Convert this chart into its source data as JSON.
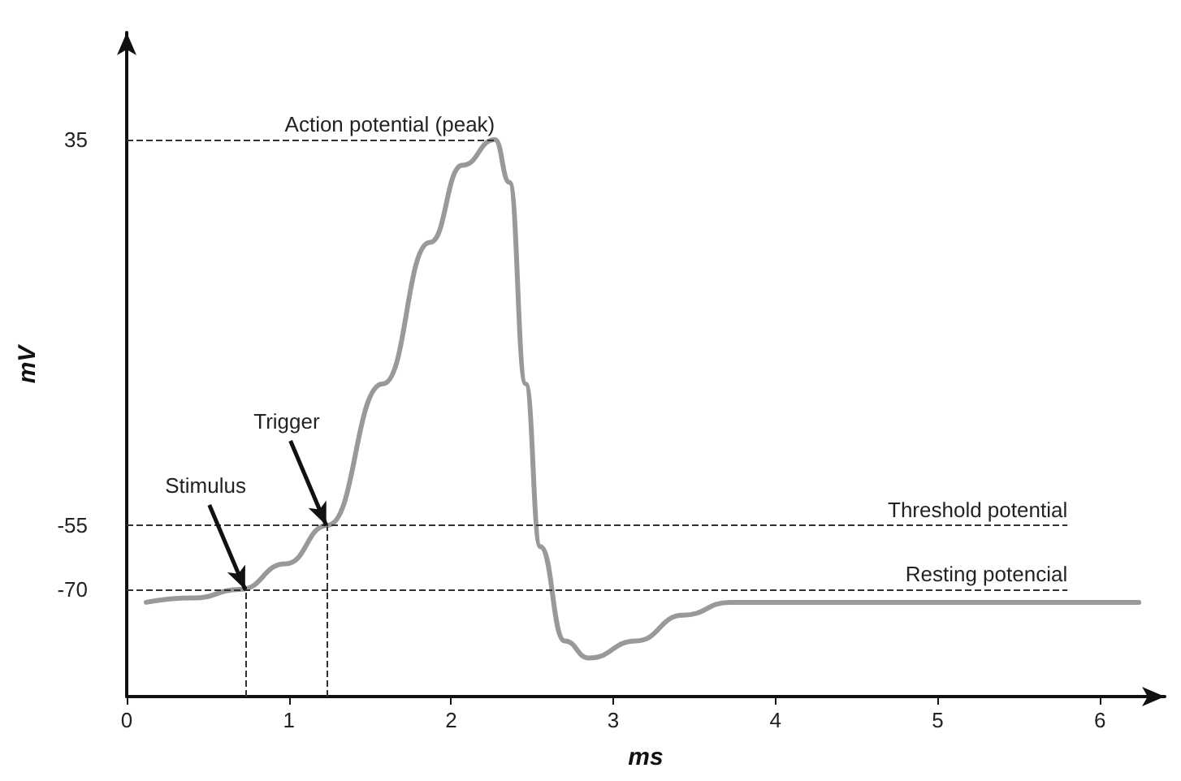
{
  "chart_data": {
    "type": "line",
    "xlabel": "ms",
    "ylabel": "mV",
    "x": [
      0.12,
      0.41,
      0.7,
      0.98,
      1.24,
      1.58,
      1.87,
      2.07,
      2.27,
      2.36,
      2.46,
      2.55,
      2.7,
      2.85,
      3.14,
      3.43,
      3.72,
      4.1,
      6.24
    ],
    "series": [
      {
        "color": "#999999",
        "values": [
          -73,
          -72,
          -70,
          -64,
          -55,
          -22,
          11,
          29,
          35,
          25,
          -22,
          -60,
          -82,
          -86,
          -82,
          -76,
          -73,
          -73,
          -73
        ]
      }
    ],
    "xlim": [
      0,
      6.4
    ],
    "xticks": [
      0,
      1,
      2,
      3,
      4,
      5,
      6
    ],
    "ylim": [
      -95,
      60
    ],
    "yticks": [
      -70,
      -55,
      35
    ],
    "ref_lines": [
      {
        "axis": "y",
        "value": 35,
        "label": "Action potential (peak)",
        "line_style": "dashed"
      },
      {
        "axis": "y",
        "value": -55,
        "label": "Threshold potential",
        "line_style": "dashed"
      },
      {
        "axis": "y",
        "value": -70,
        "label": "Resting potencial",
        "line_style": "dashed"
      },
      {
        "axis": "x",
        "value": 0.73,
        "label": null,
        "line_style": "dashed"
      },
      {
        "axis": "x",
        "value": 1.23,
        "label": null,
        "line_style": "dashed"
      }
    ],
    "annotations": [
      {
        "text": "Stimulus",
        "x": 0.73,
        "y": -70
      },
      {
        "text": "Trigger",
        "x": 1.23,
        "y": -55
      }
    ],
    "grid": false,
    "marker": "none",
    "line_style": "solid"
  }
}
